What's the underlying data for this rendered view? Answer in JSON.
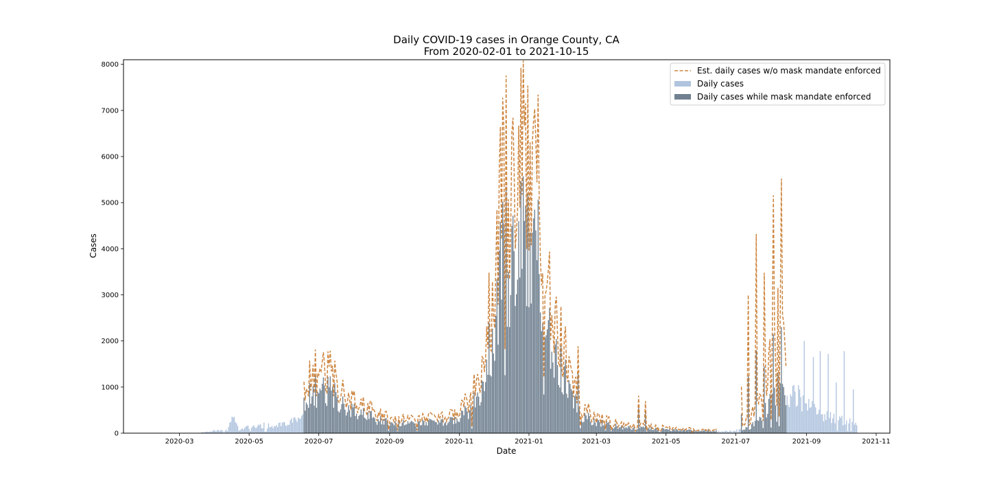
{
  "chart_data": {
    "type": "bar",
    "title": "Daily COVID-19 cases in Orange County, CA",
    "subtitle": "From 2020-02-01 to 2021-10-15",
    "xlabel": "Date",
    "ylabel": "Cases",
    "x_type": "date",
    "xlim": [
      "2020-01-12",
      "2021-11-13"
    ],
    "ylim": [
      0,
      8100
    ],
    "x_ticks": [
      "2020-03-01",
      "2020-05-01",
      "2020-07-01",
      "2020-09-01",
      "2020-11-01",
      "2021-01-01",
      "2021-03-01",
      "2021-05-01",
      "2021-07-01",
      "2021-09-01",
      "2021-11-01"
    ],
    "x_tick_labels": [
      "2020-03",
      "2020-05",
      "2020-07",
      "2020-09",
      "2020-11",
      "2021-01",
      "2021-03",
      "2021-05",
      "2021-07",
      "2021-09",
      "2021-11"
    ],
    "y_ticks": [
      0,
      1000,
      2000,
      3000,
      4000,
      5000,
      6000,
      7000,
      8000
    ],
    "y_tick_labels": [
      "0",
      "1000",
      "2000",
      "3000",
      "4000",
      "5000",
      "6000",
      "7000",
      "8000"
    ],
    "grid": false,
    "legend_position": "top-right",
    "legend": [
      {
        "label": "Est. daily cases w/o mask mandate enforced",
        "kind": "dashed-line",
        "color": "#cd853f"
      },
      {
        "label": "Daily cases",
        "kind": "patch",
        "color": "#b0c4de"
      },
      {
        "label": "Daily cases while mask mandate enforced",
        "kind": "patch",
        "color": "#708090"
      }
    ],
    "colors": {
      "daily": "#b0c4de",
      "mandate": "#708090",
      "estimate": "#cd853f"
    },
    "series": [
      {
        "name": "Daily cases",
        "date_range": [
          "2020-03-20",
          "2020-06-17"
        ],
        "points": [
          [
            "2020-03-20",
            15
          ],
          [
            "2020-03-25",
            40
          ],
          [
            "2020-03-31",
            60
          ],
          [
            "2020-04-06",
            70
          ],
          [
            "2020-04-12",
            60
          ],
          [
            "2020-04-17",
            380
          ],
          [
            "2020-04-22",
            90
          ],
          [
            "2020-04-28",
            120
          ],
          [
            "2020-05-05",
            160
          ],
          [
            "2020-05-12",
            180
          ],
          [
            "2020-05-20",
            170
          ],
          [
            "2020-05-27",
            200
          ],
          [
            "2020-06-03",
            230
          ],
          [
            "2020-06-10",
            270
          ],
          [
            "2020-06-17",
            330
          ]
        ]
      },
      {
        "name": "Daily cases while mask mandate enforced",
        "date_range": [
          "2020-06-18",
          "2021-06-14"
        ],
        "points": [
          [
            "2020-06-18",
            600
          ],
          [
            "2020-06-24",
            900
          ],
          [
            "2020-06-29",
            1000
          ],
          [
            "2020-07-05",
            950
          ],
          [
            "2020-07-09",
            1050
          ],
          [
            "2020-07-14",
            900
          ],
          [
            "2020-07-20",
            700
          ],
          [
            "2020-07-27",
            550
          ],
          [
            "2020-08-05",
            480
          ],
          [
            "2020-08-15",
            380
          ],
          [
            "2020-08-25",
            300
          ],
          [
            "2020-09-05",
            250
          ],
          [
            "2020-09-20",
            220
          ],
          [
            "2020-10-05",
            250
          ],
          [
            "2020-10-20",
            260
          ],
          [
            "2020-11-01",
            350
          ],
          [
            "2020-11-08",
            500
          ],
          [
            "2020-11-15",
            800
          ],
          [
            "2020-11-22",
            1300
          ],
          [
            "2020-11-29",
            2200
          ],
          [
            "2020-12-05",
            3300
          ],
          [
            "2020-12-10",
            4200
          ],
          [
            "2020-12-16",
            3800
          ],
          [
            "2020-12-22",
            4100
          ],
          [
            "2020-12-28",
            5000
          ],
          [
            "2021-01-02",
            4600
          ],
          [
            "2021-01-07",
            4300
          ],
          [
            "2021-01-12",
            3300
          ],
          [
            "2021-01-17",
            2600
          ],
          [
            "2021-01-22",
            2000
          ],
          [
            "2021-01-30",
            1500
          ],
          [
            "2021-02-06",
            900
          ],
          [
            "2021-02-15",
            450
          ],
          [
            "2021-02-25",
            300
          ],
          [
            "2021-03-08",
            220
          ],
          [
            "2021-03-20",
            150
          ],
          [
            "2021-04-01",
            120
          ],
          [
            "2021-04-15",
            110
          ],
          [
            "2021-05-01",
            90
          ],
          [
            "2021-05-20",
            70
          ],
          [
            "2021-06-14",
            55
          ]
        ]
      },
      {
        "name": "Daily cases",
        "date_range": [
          "2021-06-15",
          "2021-07-05"
        ],
        "points": [
          [
            "2021-06-15",
            40
          ],
          [
            "2021-06-25",
            50
          ],
          [
            "2021-07-05",
            70
          ]
        ]
      },
      {
        "name": "Daily cases while mask mandate enforced",
        "date_range": [
          "2021-07-06",
          "2021-08-14"
        ],
        "points": [
          [
            "2021-07-06",
            80
          ],
          [
            "2021-07-14",
            120
          ],
          [
            "2021-07-22",
            400
          ],
          [
            "2021-07-30",
            600
          ],
          [
            "2021-08-06",
            1100
          ],
          [
            "2021-08-14",
            700
          ]
        ]
      },
      {
        "name": "Daily cases",
        "date_range": [
          "2021-08-15",
          "2021-10-15"
        ],
        "points": [
          [
            "2021-08-15",
            650
          ],
          [
            "2021-08-22",
            900
          ],
          [
            "2021-08-29",
            700
          ],
          [
            "2021-09-05",
            600
          ],
          [
            "2021-09-12",
            450
          ],
          [
            "2021-09-19",
            400
          ],
          [
            "2021-09-26",
            380
          ],
          [
            "2021-10-03",
            300
          ],
          [
            "2021-10-10",
            250
          ],
          [
            "2021-10-15",
            220
          ]
        ]
      },
      {
        "name": "Est. daily cases w/o mask mandate enforced",
        "kind": "line",
        "segments": [
          {
            "date_range": [
              "2020-06-18",
              "2021-06-14"
            ],
            "multiplier": 1.45
          },
          {
            "date_range": [
              "2021-07-06",
              "2021-08-14"
            ],
            "multiplier": 2.4
          }
        ]
      }
    ],
    "spikes": [
      [
        "2020-12-12",
        5350
      ],
      [
        "2020-12-19",
        3950
      ],
      [
        "2020-12-31",
        5200
      ],
      [
        "2021-01-06",
        4850
      ],
      [
        "2021-02-13",
        1300
      ],
      [
        "2021-04-07",
        560
      ],
      [
        "2021-04-13",
        480
      ],
      [
        "2021-07-06",
        420
      ],
      [
        "2021-07-12",
        1250
      ],
      [
        "2021-07-19",
        1800
      ],
      [
        "2021-07-26",
        1450
      ],
      [
        "2021-08-03",
        2150
      ],
      [
        "2021-08-10",
        2300
      ],
      [
        "2021-08-12",
        1000
      ],
      [
        "2021-08-23",
        2300
      ],
      [
        "2021-08-30",
        2000
      ],
      [
        "2021-09-07",
        1650
      ],
      [
        "2021-09-13",
        1780
      ],
      [
        "2021-09-20",
        1720
      ],
      [
        "2021-09-27",
        1100
      ],
      [
        "2021-10-04",
        1780
      ],
      [
        "2021-10-12",
        950
      ]
    ]
  }
}
